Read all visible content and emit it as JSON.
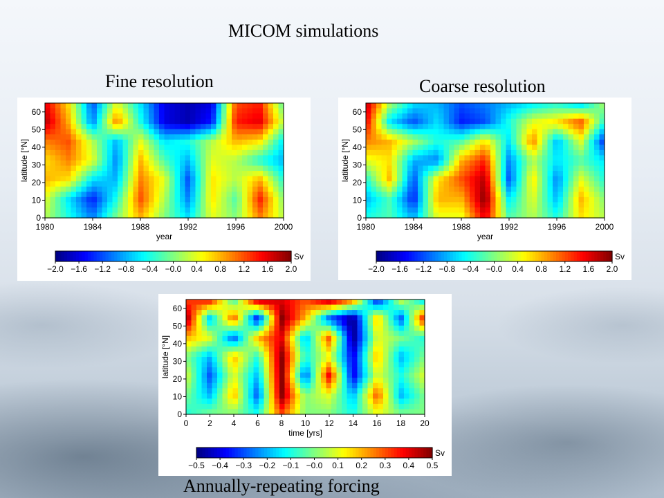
{
  "page": {
    "title": "MICOM simulations"
  },
  "colors": {
    "colormap": [
      "#00007f",
      "#0000ff",
      "#0080ff",
      "#00ffff",
      "#80ff80",
      "#ffff00",
      "#ff8000",
      "#ff0000",
      "#7f0000"
    ]
  },
  "chart_data": [
    {
      "type": "heatmap",
      "title": "Fine resolution",
      "xlabel": "year",
      "ylabel": "latitude [°N]",
      "xlim": [
        1980,
        2000
      ],
      "ylim": [
        0,
        65
      ],
      "x_ticks": [
        "1980",
        "1984",
        "1988",
        "1992",
        "1996",
        "2000"
      ],
      "y_ticks": [
        "0",
        "10",
        "20",
        "30",
        "40",
        "50",
        "60"
      ],
      "colorbar": {
        "unit": "Sv",
        "range": [
          -2.0,
          2.0
        ],
        "ticks": [
          "−2.0",
          "−1.6",
          "−1.2",
          "−0.8",
          "−0.4",
          "−0.0",
          "0.4",
          "0.8",
          "1.2",
          "1.6",
          "2.0"
        ]
      },
      "field": {
        "cols": [
          1980,
          1982,
          1984,
          1986,
          1988,
          1990,
          1992,
          1994,
          1996,
          1998,
          2000
        ],
        "rows": [
          60,
          50,
          40,
          30,
          20,
          10,
          0
        ],
        "values": [
          [
            1.6,
            0.6,
            -1.2,
            0.4,
            -0.6,
            -1.6,
            -1.8,
            -1.6,
            1.2,
            1.4,
            -0.2
          ],
          [
            1.8,
            0.8,
            -1.0,
            1.0,
            -0.4,
            -1.6,
            -1.8,
            -1.4,
            1.4,
            1.6,
            0.2
          ],
          [
            1.0,
            1.2,
            0.2,
            -0.8,
            0.4,
            -0.6,
            -0.4,
            0.2,
            0.8,
            0.6,
            -0.6
          ],
          [
            0.6,
            1.0,
            0.4,
            -1.0,
            0.8,
            -0.2,
            -0.8,
            0.4,
            0.2,
            -0.4,
            -0.8
          ],
          [
            0.8,
            0.6,
            -0.6,
            -0.8,
            1.0,
            0.4,
            -1.2,
            0.6,
            0.2,
            0.8,
            -0.4
          ],
          [
            0.4,
            -0.6,
            -1.4,
            -0.4,
            1.2,
            0.2,
            -1.0,
            0.6,
            -0.2,
            1.4,
            0.0
          ],
          [
            0.2,
            -0.4,
            -1.0,
            0.0,
            0.8,
            0.0,
            -0.6,
            0.4,
            0.0,
            1.0,
            0.2
          ]
        ]
      }
    },
    {
      "type": "heatmap",
      "title": "Coarse resolution",
      "xlabel": "year",
      "ylabel": "latitude [°N]",
      "xlim": [
        1980,
        2000
      ],
      "ylim": [
        0,
        65
      ],
      "x_ticks": [
        "1980",
        "1984",
        "1988",
        "1992",
        "1996",
        "2000"
      ],
      "y_ticks": [
        "0",
        "10",
        "20",
        "30",
        "40",
        "50",
        "60"
      ],
      "colorbar": {
        "unit": "Sv",
        "range": [
          -2.0,
          2.0
        ],
        "ticks": [
          "−2.0",
          "−1.6",
          "−1.2",
          "−0.8",
          "−0.4",
          "−0.0",
          "0.4",
          "0.8",
          "1.2",
          "1.6",
          "2.0"
        ]
      },
      "field": {
        "cols": [
          1980,
          1982,
          1984,
          1986,
          1988,
          1990,
          1992,
          1994,
          1996,
          1998,
          2000
        ],
        "rows": [
          60,
          50,
          40,
          30,
          20,
          10,
          0
        ],
        "values": [
          [
            1.8,
            0.2,
            -0.6,
            -0.8,
            -1.2,
            -1.0,
            -0.8,
            -0.6,
            -0.4,
            -0.8,
            0.2
          ],
          [
            1.6,
            -0.6,
            -1.2,
            -0.6,
            -1.4,
            -1.2,
            -0.4,
            0.4,
            0.6,
            1.2,
            -0.4
          ],
          [
            1.0,
            0.8,
            0.2,
            -0.4,
            -0.2,
            0.6,
            -0.6,
            1.0,
            -0.8,
            0.4,
            -1.4
          ],
          [
            0.4,
            0.6,
            -0.8,
            -1.0,
            0.8,
            1.4,
            -1.0,
            0.2,
            -0.6,
            -0.2,
            -0.6
          ],
          [
            -0.4,
            0.8,
            -1.2,
            0.6,
            1.2,
            1.8,
            -1.2,
            0.6,
            -1.0,
            0.4,
            -0.4
          ],
          [
            -0.8,
            -0.2,
            -1.4,
            0.8,
            0.8,
            2.0,
            -0.6,
            0.4,
            -0.8,
            0.8,
            0.0
          ],
          [
            -0.4,
            -0.2,
            -0.8,
            0.4,
            0.4,
            1.6,
            -0.2,
            0.2,
            -0.4,
            0.6,
            0.2
          ]
        ]
      }
    },
    {
      "type": "heatmap",
      "title": "Annually-repeating forcing",
      "xlabel": "time [yrs]",
      "ylabel": "latitude [°N]",
      "xlim": [
        0,
        20
      ],
      "ylim": [
        0,
        65
      ],
      "x_ticks": [
        "0",
        "2",
        "4",
        "6",
        "8",
        "10",
        "12",
        "14",
        "16",
        "18",
        "20"
      ],
      "y_ticks": [
        "0",
        "10",
        "20",
        "30",
        "40",
        "50",
        "60"
      ],
      "colorbar": {
        "unit": "Sv",
        "range": [
          -0.5,
          0.5
        ],
        "ticks": [
          "−0.5",
          "−0.4",
          "−0.3",
          "−0.2",
          "−0.1",
          "−0.0",
          "0.1",
          "0.2",
          "0.3",
          "0.4",
          "0.5"
        ]
      },
      "field": {
        "cols": [
          0,
          2,
          4,
          6,
          8,
          10,
          12,
          14,
          16,
          18,
          20
        ],
        "rows": [
          60,
          50,
          40,
          30,
          20,
          10,
          0
        ],
        "values": [
          [
            0.3,
            0.4,
            -0.1,
            0.5,
            0.4,
            0.3,
            0.5,
            0.3,
            -0.4,
            0.1,
            -0.2
          ],
          [
            0.5,
            -0.2,
            0.3,
            -0.4,
            0.5,
            0.2,
            -0.3,
            -0.5,
            0.2,
            -0.3,
            0.4
          ],
          [
            0.2,
            0.1,
            -0.3,
            0.2,
            0.4,
            -0.2,
            0.3,
            -0.5,
            0.1,
            0.0,
            -0.1
          ],
          [
            0.0,
            -0.2,
            0.2,
            -0.1,
            0.5,
            -0.1,
            0.1,
            -0.4,
            0.2,
            -0.2,
            0.0
          ],
          [
            0.1,
            -0.3,
            0.1,
            -0.2,
            0.5,
            -0.3,
            0.4,
            -0.4,
            0.1,
            -0.1,
            0.1
          ],
          [
            0.0,
            -0.2,
            0.2,
            -0.3,
            0.5,
            0.0,
            0.1,
            -0.2,
            0.3,
            -0.2,
            0.0
          ],
          [
            -0.1,
            0.0,
            0.0,
            -0.1,
            0.3,
            0.0,
            0.0,
            -0.1,
            0.1,
            0.0,
            0.0
          ]
        ]
      }
    }
  ]
}
